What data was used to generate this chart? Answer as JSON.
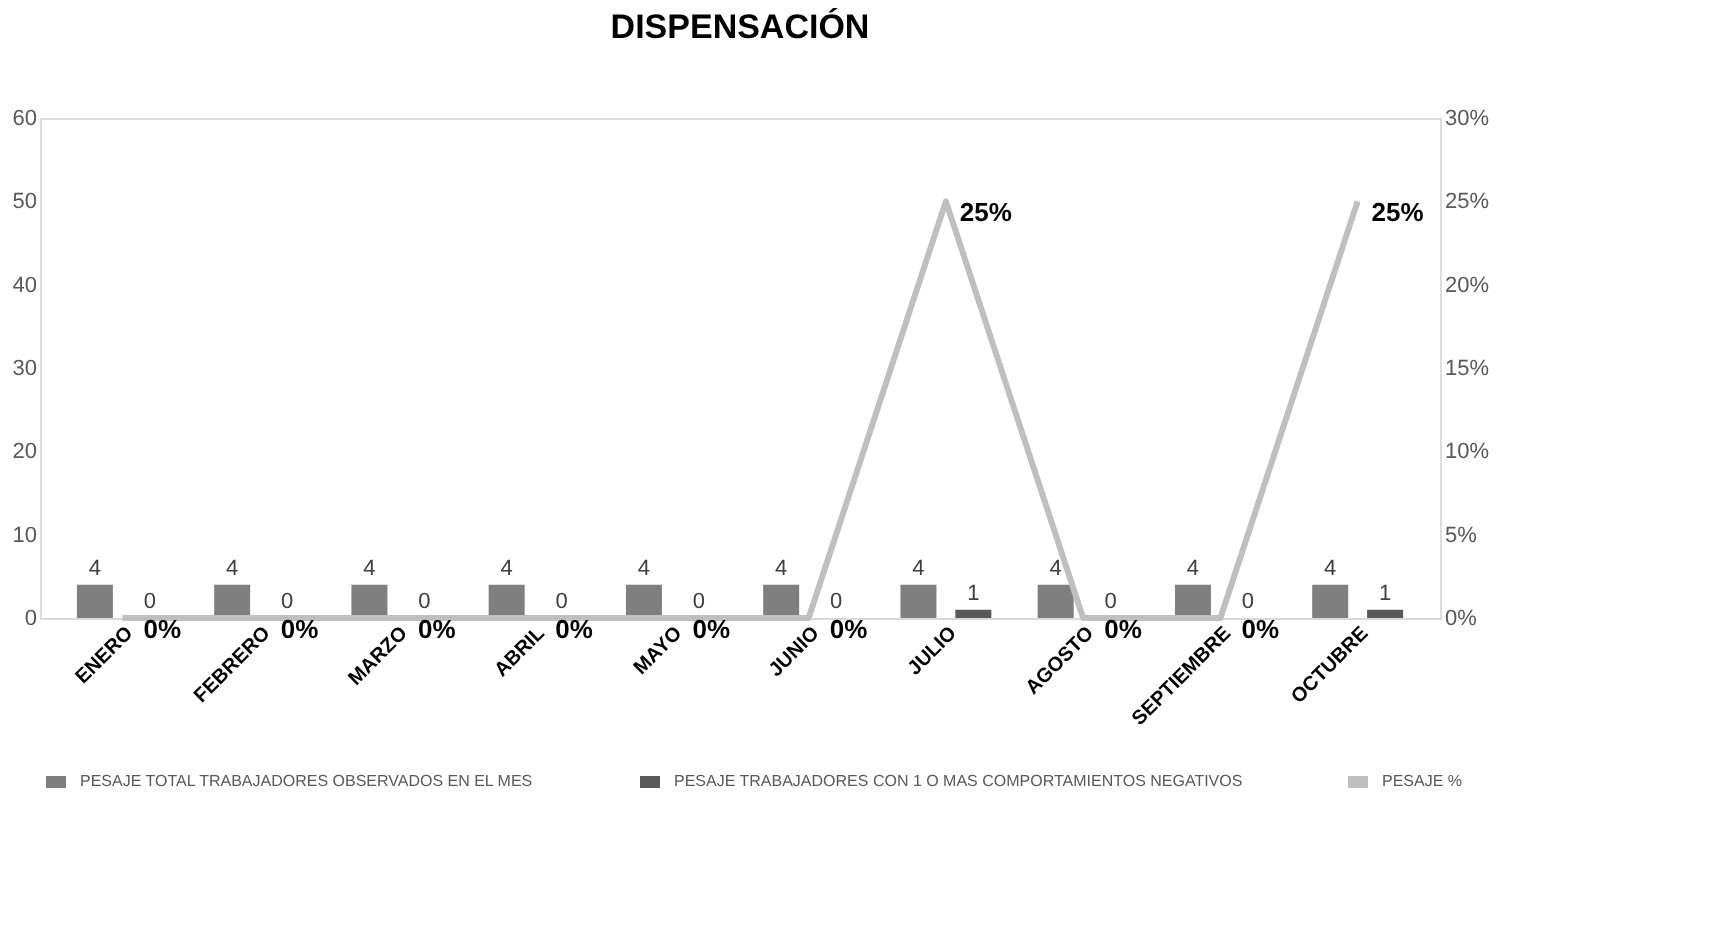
{
  "chart_data": {
    "type": "bar",
    "title": "DISPENSACIÓN",
    "categories": [
      "ENERO",
      "FEBRERO",
      "MARZO",
      "ABRIL",
      "MAYO",
      "JUNIO",
      "JULIO",
      "AGOSTO",
      "SEPTIEMBRE",
      "OCTUBRE"
    ],
    "series": [
      {
        "name": "PESAJE TOTAL TRABAJADORES OBSERVADOS EN EL MES",
        "color": "#7f7f7f",
        "values": [
          4,
          4,
          4,
          4,
          4,
          4,
          4,
          4,
          4,
          4
        ],
        "value_labels": [
          "4",
          "4",
          "4",
          "4",
          "4",
          "4",
          "4",
          "4",
          "4",
          "4"
        ]
      },
      {
        "name": "PESAJE TRABAJADORES CON 1 O MAS COMPORTAMIENTOS NEGATIVOS",
        "color": "#595959",
        "values": [
          0,
          0,
          0,
          0,
          0,
          0,
          1,
          0,
          0,
          1
        ],
        "value_labels": [
          "0",
          "0",
          "0",
          "0",
          "0",
          "0",
          "1",
          "0",
          "0",
          "1"
        ]
      },
      {
        "name": "PESAJE %",
        "type": "line",
        "axis": "y2",
        "color": "#bfbfbf",
        "values": [
          0,
          0,
          0,
          0,
          0,
          0,
          25,
          0,
          0,
          25
        ],
        "value_labels": [
          "0%",
          "0%",
          "0%",
          "0%",
          "0%",
          "0%",
          "25%",
          "0%",
          "0%",
          "25%"
        ]
      }
    ],
    "ylim": [
      0,
      60
    ],
    "yticks": [
      0,
      10,
      20,
      30,
      40,
      50,
      60
    ],
    "y2lim": [
      0,
      30
    ],
    "y2ticks": [
      {
        "value": 0,
        "label": "0%"
      },
      {
        "value": 5,
        "label": "5%"
      },
      {
        "value": 10,
        "label": "10%"
      },
      {
        "value": 15,
        "label": "15%"
      },
      {
        "value": 20,
        "label": "20%"
      },
      {
        "value": 25,
        "label": "25%"
      },
      {
        "value": 30,
        "label": "30%"
      }
    ],
    "legend": "bottom",
    "grid": false
  }
}
